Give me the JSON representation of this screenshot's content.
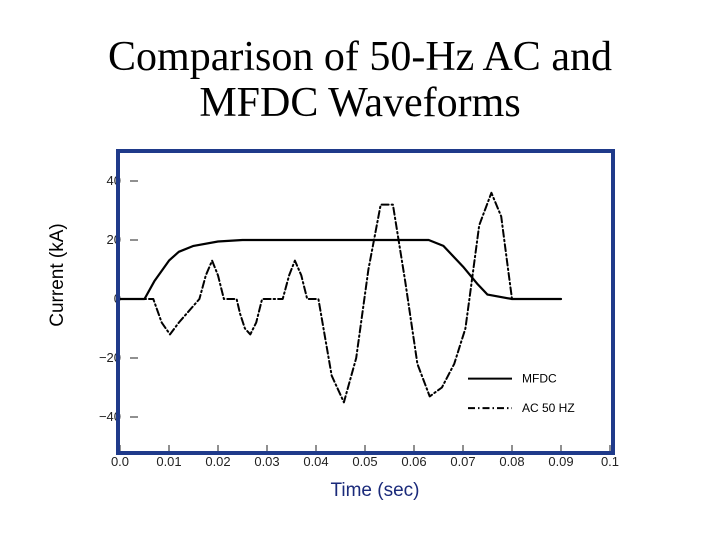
{
  "title_lines": [
    "Comparison of 50-Hz AC and",
    "MFDC Waveforms"
  ],
  "chart_data": {
    "type": "line",
    "title": "Comparison of 50-Hz AC and MFDC Waveforms",
    "xlabel": "Time (sec)",
    "ylabel": "Current (kA)",
    "xlim": [
      0.0,
      0.1
    ],
    "ylim": [
      -50,
      45
    ],
    "x_ticks": [
      0.0,
      0.01,
      0.02,
      0.03,
      0.04,
      0.05,
      0.06,
      0.07,
      0.08,
      0.09,
      0.1
    ],
    "x_tick_labels": [
      "0.0",
      "0.01",
      "0.02",
      "0.03",
      "0.04",
      "0.05",
      "0.06",
      "0.07",
      "0.08",
      "0.09",
      "0.1"
    ],
    "y_ticks": [
      40,
      20,
      0,
      -20,
      -40
    ],
    "y_tick_labels": [
      "40",
      "20",
      "0",
      "−20",
      "−40"
    ],
    "legend_position": "bottom-right",
    "frame_color": "#1f3a8a",
    "series": [
      {
        "name": "MFDC",
        "style": "solid",
        "x": [
          0.0,
          0.005,
          0.007,
          0.01,
          0.012,
          0.015,
          0.02,
          0.025,
          0.03,
          0.04,
          0.05,
          0.06,
          0.063,
          0.066,
          0.07,
          0.073,
          0.075,
          0.08,
          0.09
        ],
        "y": [
          0,
          0,
          6,
          13,
          16,
          18,
          19.5,
          20,
          20,
          20,
          20,
          20,
          20,
          18,
          11,
          5,
          1.5,
          0,
          0
        ]
      },
      {
        "name": "AC 50 HZ",
        "style": "dash-dot",
        "x": [
          0.0,
          0.005,
          0.0068,
          0.0085,
          0.0102,
          0.012,
          0.0162,
          0.0175,
          0.0188,
          0.02,
          0.0212,
          0.0225,
          0.0238,
          0.0245,
          0.0255,
          0.0266,
          0.0278,
          0.029,
          0.0302,
          0.0332,
          0.0345,
          0.0357,
          0.037,
          0.0382,
          0.0395,
          0.0405,
          0.0432,
          0.0457,
          0.0482,
          0.0507,
          0.0532,
          0.0557,
          0.0582,
          0.0607,
          0.0632,
          0.0657,
          0.0682,
          0.0705,
          0.0713,
          0.0733,
          0.0758,
          0.0778,
          0.0792,
          0.08,
          0.0805
        ],
        "y": [
          0,
          0,
          0,
          -8,
          -12,
          -8,
          0,
          8,
          13,
          8,
          0,
          0,
          0,
          -5,
          -10,
          -12,
          -8,
          0,
          0,
          0,
          8,
          13,
          8,
          0,
          0,
          0,
          -26,
          -35,
          -20,
          10,
          32,
          32,
          6,
          -22,
          -33,
          -30,
          -22,
          -10,
          0,
          25,
          36,
          28,
          10,
          0,
          0
        ]
      }
    ]
  }
}
